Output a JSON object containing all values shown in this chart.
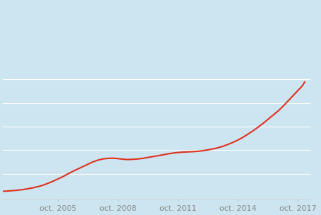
{
  "background_color": "#cce5f0",
  "line_color": "#e03020",
  "line_width": 1.5,
  "x_tick_labels": [
    "oct. 2005",
    "oct. 2008",
    "oct. 2011",
    "oct. 2014",
    "oct. 2017"
  ],
  "x_tick_positions": [
    2005.75,
    2008.75,
    2011.75,
    2014.75,
    2017.75
  ],
  "grid_color": "#ffffff",
  "tick_color": "#aaaaaa",
  "label_color": "#888888",
  "label_fontsize": 8.0,
  "years": [
    2003.0,
    2003.25,
    2003.5,
    2003.75,
    2004.0,
    2004.25,
    2004.5,
    2004.75,
    2005.0,
    2005.25,
    2005.5,
    2005.75,
    2006.0,
    2006.25,
    2006.5,
    2006.75,
    2007.0,
    2007.25,
    2007.5,
    2007.75,
    2008.0,
    2008.25,
    2008.5,
    2008.75,
    2009.0,
    2009.25,
    2009.5,
    2009.75,
    2010.0,
    2010.25,
    2010.5,
    2010.75,
    2011.0,
    2011.25,
    2011.5,
    2011.75,
    2012.0,
    2012.25,
    2012.5,
    2012.75,
    2013.0,
    2013.25,
    2013.5,
    2013.75,
    2014.0,
    2014.25,
    2014.5,
    2014.75,
    2015.0,
    2015.25,
    2015.5,
    2015.75,
    2016.0,
    2016.25,
    2016.5,
    2016.75,
    2017.0,
    2017.25,
    2017.5,
    2017.75,
    2018.0,
    2018.1
  ],
  "values": [
    100,
    100.3,
    100.6,
    101,
    101.5,
    102.2,
    103.0,
    104.0,
    105.2,
    106.8,
    108.5,
    110.5,
    112.5,
    114.8,
    117.0,
    119.0,
    121.0,
    123.0,
    125.0,
    126.5,
    127.5,
    128.0,
    128.2,
    127.8,
    127.3,
    127.0,
    127.2,
    127.5,
    128.0,
    128.8,
    129.5,
    130.2,
    131.0,
    131.8,
    132.5,
    133.0,
    133.3,
    133.5,
    133.7,
    134.0,
    134.5,
    135.2,
    136.0,
    137.0,
    138.2,
    139.8,
    141.5,
    143.5,
    145.8,
    148.5,
    151.3,
    154.3,
    157.5,
    161.0,
    164.5,
    168.0,
    172.0,
    176.5,
    181.0,
    185.5,
    190.0,
    193.0
  ],
  "ylim_min": 93,
  "ylim_max": 260,
  "xlim_min": 2003.0,
  "xlim_max": 2018.4,
  "grid_y_positions": [
    115,
    135,
    155,
    175,
    195
  ],
  "figsize": [
    4.56,
    3.04
  ],
  "dpi": 100
}
